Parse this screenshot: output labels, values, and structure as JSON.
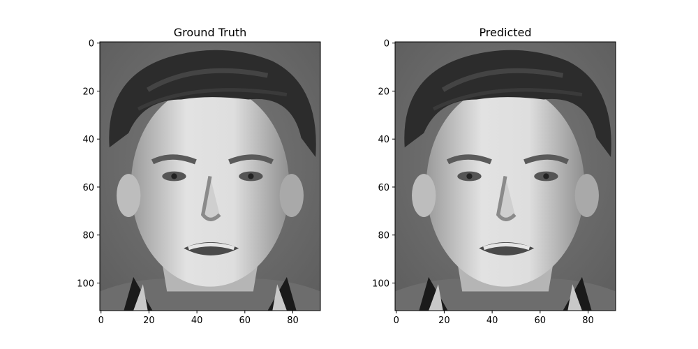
{
  "chart_data": [
    {
      "type": "heatmap",
      "title": "Ground Truth",
      "colormap": "gray",
      "image_shape": [
        112,
        92
      ],
      "xlim": [
        0,
        92
      ],
      "ylim": [
        112,
        0
      ],
      "xticks": [
        "0",
        "20",
        "40",
        "60",
        "80"
      ],
      "yticks": [
        "0",
        "20",
        "40",
        "60",
        "80",
        "100"
      ],
      "content": "grayscale face: short dark hair, open mouth showing teeth, light-colored shirt collar"
    },
    {
      "type": "heatmap",
      "title": "Predicted",
      "colormap": "gray",
      "image_shape": [
        112,
        92
      ],
      "xlim": [
        0,
        92
      ],
      "ylim": [
        112,
        0
      ],
      "xticks": [
        "0",
        "20",
        "40",
        "60",
        "80"
      ],
      "yticks": [
        "0",
        "20",
        "40",
        "60",
        "80",
        "100"
      ],
      "content": "grayscale face: short dark hair, mouth slightly open, shirt collar"
    }
  ],
  "colors": {
    "frame": "#000000",
    "background": "#ffffff"
  }
}
